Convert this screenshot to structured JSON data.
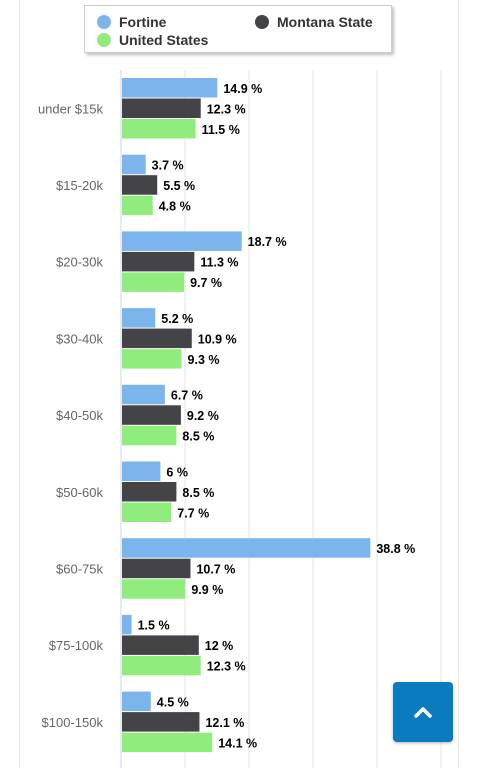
{
  "legend": [
    {
      "name": "Fortine",
      "color": "#7cb5ec"
    },
    {
      "name": "Montana State",
      "color": "#434348"
    },
    {
      "name": "United States",
      "color": "#90ed7d"
    }
  ],
  "chart_data": {
    "type": "bar",
    "orientation": "horizontal",
    "categories": [
      "under $15k",
      "$15-20k",
      "$20-30k",
      "$30-40k",
      "$40-50k",
      "$50-60k",
      "$60-75k",
      "$75-100k",
      "$100-150k"
    ],
    "series": [
      {
        "name": "Fortine",
        "color": "#7cb5ec",
        "values": [
          14.9,
          3.7,
          18.7,
          5.2,
          6.7,
          6,
          38.8,
          1.5,
          4.5
        ],
        "labels": [
          "14.9 %",
          "3.7 %",
          "18.7 %",
          "5.2 %",
          "6.7 %",
          "6 %",
          "38.8 %",
          "1.5 %",
          "4.5 %"
        ]
      },
      {
        "name": "Montana State",
        "color": "#434348",
        "values": [
          12.3,
          5.5,
          11.3,
          10.9,
          9.2,
          8.5,
          10.7,
          12,
          12.1
        ],
        "labels": [
          "12.3 %",
          "5.5 %",
          "11.3 %",
          "10.9 %",
          "9.2 %",
          "8.5 %",
          "10.7 %",
          "12 %",
          "12.1 %"
        ]
      },
      {
        "name": "United States",
        "color": "#90ed7d",
        "values": [
          11.5,
          4.8,
          9.7,
          9.3,
          8.5,
          7.7,
          9.9,
          12.3,
          14.1
        ],
        "labels": [
          "11.5 %",
          "4.8 %",
          "9.7 %",
          "9.3 %",
          "8.5 %",
          "7.7 %",
          "9.9 %",
          "12.3 %",
          "14.1 %"
        ]
      }
    ],
    "xlim": [
      0,
      50
    ],
    "grid": true,
    "legend_position": "top"
  },
  "scroll_top_button": {
    "icon": "chevron-up-icon",
    "color": "#0a7bbf"
  }
}
